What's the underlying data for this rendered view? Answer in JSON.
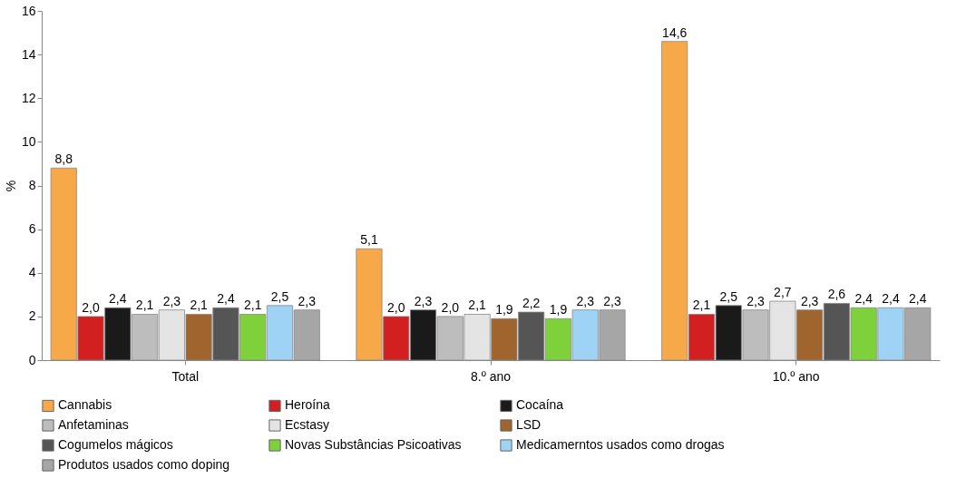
{
  "chart_data": {
    "type": "bar",
    "ylabel": "%",
    "categories": [
      "Total",
      "8.º ano",
      "10.º ano"
    ],
    "ylim": [
      0,
      16
    ],
    "yticks": [
      0,
      2,
      4,
      6,
      8,
      10,
      12,
      14,
      16
    ],
    "grid": false,
    "legend": "bottom",
    "series": [
      {
        "name": "Cannabis",
        "color": "#f7a94a",
        "values": [
          8.8,
          5.1,
          14.6
        ],
        "value_labels": [
          "8,8",
          "5,1",
          "14,6"
        ]
      },
      {
        "name": "Heroína",
        "color": "#d21f1f",
        "values": [
          2.0,
          2.0,
          2.1
        ],
        "value_labels": [
          "2,0",
          "2,0",
          "2,1"
        ]
      },
      {
        "name": "Cocaína",
        "color": "#1a1a1a",
        "values": [
          2.4,
          2.3,
          2.5
        ],
        "value_labels": [
          "2,4",
          "2,3",
          "2,5"
        ]
      },
      {
        "name": "Anfetaminas",
        "color": "#bdbdbd",
        "values": [
          2.1,
          2.0,
          2.3
        ],
        "value_labels": [
          "2,1",
          "2,0",
          "2,3"
        ]
      },
      {
        "name": "Ecstasy",
        "color": "#e4e4e4",
        "values": [
          2.3,
          2.1,
          2.7
        ],
        "value_labels": [
          "2,3",
          "2,1",
          "2,7"
        ]
      },
      {
        "name": "LSD",
        "color": "#a0652e",
        "values": [
          2.1,
          1.9,
          2.3
        ],
        "value_labels": [
          "2,1",
          "1,9",
          "2,3"
        ]
      },
      {
        "name": "Cogumelos mágicos",
        "color": "#555555",
        "values": [
          2.4,
          2.2,
          2.6
        ],
        "value_labels": [
          "2,4",
          "2,2",
          "2,6"
        ]
      },
      {
        "name": "Novas Substâncias Psicoativas",
        "color": "#7fd13b",
        "values": [
          2.1,
          1.9,
          2.4
        ],
        "value_labels": [
          "2,1",
          "1,9",
          "2,4"
        ]
      },
      {
        "name": "Medicamerntos usados como drogas",
        "color": "#9fd3f5",
        "values": [
          2.5,
          2.3,
          2.4
        ],
        "value_labels": [
          "2,5",
          "2,3",
          "2,4"
        ]
      },
      {
        "name": "Produtos usados como doping",
        "color": "#a6a6a6",
        "values": [
          2.3,
          2.3,
          2.4
        ],
        "value_labels": [
          "2,3",
          "2,3",
          "2,4"
        ]
      }
    ]
  }
}
